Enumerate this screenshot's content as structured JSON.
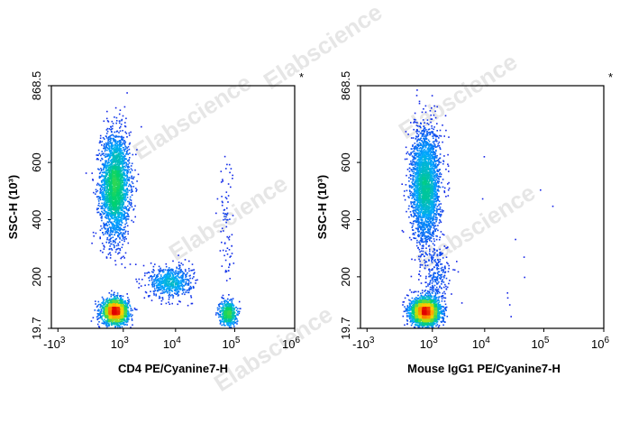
{
  "watermark": "Elabscience",
  "chart_data": [
    {
      "type": "scatter",
      "xlabel": "CD4 PE/Cyanine7-H",
      "ylabel": "SSC-H (10³)",
      "y_ticks": [
        "868.5",
        "600",
        "400",
        "200",
        "19.7"
      ],
      "y_tick_values": [
        868.5,
        600,
        400,
        200,
        19.7
      ],
      "ylim": [
        19.7,
        868.5
      ],
      "x_scale": "biexponential",
      "x_ticks": [
        {
          "base": "-10",
          "exp": "3",
          "value": -1000
        },
        {
          "base": "10",
          "exp": "3",
          "value": 1000
        },
        {
          "base": "10",
          "exp": "4",
          "value": 10000
        },
        {
          "base": "10",
          "exp": "5",
          "value": 100000
        },
        {
          "base": "10",
          "exp": "6",
          "value": 1000000
        }
      ],
      "marker": "*",
      "populations": [
        {
          "x": 600,
          "y": 520,
          "count": 2600,
          "x_spread": 0.12,
          "y_spread": 95
        },
        {
          "x": 600,
          "y": 80,
          "count": 1700,
          "x_spread": 0.11,
          "y_spread": 22
        },
        {
          "x": 8000,
          "y": 185,
          "count": 650,
          "x_spread": 0.18,
          "y_spread": 28
        },
        {
          "x": 75000,
          "y": 75,
          "count": 500,
          "x_spread": 0.07,
          "y_spread": 22
        },
        {
          "x": 70000,
          "y": 350,
          "count": 90,
          "x_spread": 0.06,
          "y_spread": 160
        }
      ]
    },
    {
      "type": "scatter",
      "xlabel": "Mouse IgG1 PE/Cyanine7-H",
      "ylabel": "SSC-H (10³)",
      "y_ticks": [
        "868.5",
        "600",
        "400",
        "200",
        "19.7"
      ],
      "y_tick_values": [
        868.5,
        600,
        400,
        200,
        19.7
      ],
      "ylim": [
        19.7,
        868.5
      ],
      "x_scale": "biexponential",
      "x_ticks": [
        {
          "base": "-10",
          "exp": "3",
          "value": -1000
        },
        {
          "base": "10",
          "exp": "3",
          "value": 1000
        },
        {
          "base": "10",
          "exp": "4",
          "value": 10000
        },
        {
          "base": "10",
          "exp": "5",
          "value": 100000
        },
        {
          "base": "10",
          "exp": "6",
          "value": 1000000
        }
      ],
      "marker": "*",
      "populations": [
        {
          "x": 650,
          "y": 520,
          "count": 2700,
          "x_spread": 0.12,
          "y_spread": 100
        },
        {
          "x": 650,
          "y": 80,
          "count": 2500,
          "x_spread": 0.12,
          "y_spread": 24
        },
        {
          "x": 1200,
          "y": 200,
          "count": 260,
          "x_spread": 0.12,
          "y_spread": 50
        },
        {
          "x": 30000,
          "y": 300,
          "count": 12,
          "x_spread": 0.4,
          "y_spread": 200
        }
      ]
    }
  ]
}
